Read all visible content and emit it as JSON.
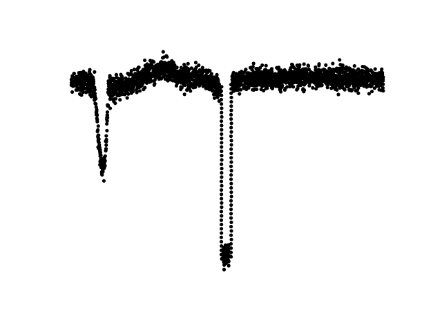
{
  "chart_data": {
    "type": "scatter",
    "title": "",
    "xlabel": "",
    "ylabel": "",
    "axes_visible": false,
    "grid": false,
    "legend": "none",
    "marker_color": "#000000",
    "xlim": [
      0,
      100
    ],
    "ylim": [
      0,
      100
    ],
    "x_range_data": [
      0,
      100
    ],
    "baseline_points": [
      {
        "x": 0,
        "y": 80.0
      },
      {
        "x": 5,
        "y": 80.0
      },
      {
        "x": 7,
        "y": 79.0
      },
      {
        "x": 8,
        "y": 70.0
      },
      {
        "x": 9,
        "y": 55.0
      },
      {
        "x": 10,
        "y": 47.0
      },
      {
        "x": 11,
        "y": 52.0
      },
      {
        "x": 11.5,
        "y": 65.0
      },
      {
        "x": 12,
        "y": 78.0
      },
      {
        "x": 15,
        "y": 77.0
      },
      {
        "x": 20,
        "y": 80.0
      },
      {
        "x": 25,
        "y": 83.0
      },
      {
        "x": 30,
        "y": 85.0
      },
      {
        "x": 35,
        "y": 81.0
      },
      {
        "x": 40,
        "y": 82.0
      },
      {
        "x": 46,
        "y": 79.0
      },
      {
        "x": 47.5,
        "y": 77.5
      },
      {
        "x": 52,
        "y": 80.0
      },
      {
        "x": 60,
        "y": 81.0
      },
      {
        "x": 70,
        "y": 81.5
      },
      {
        "x": 80,
        "y": 81.5
      },
      {
        "x": 90,
        "y": 81.0
      },
      {
        "x": 100,
        "y": 80.5
      }
    ],
    "scatter_band": 4.5,
    "transit": {
      "ingress_x": 48.0,
      "egress_x": 51.5,
      "floor_y": 14.0,
      "floor_range": [
        48.7,
        50.5
      ]
    },
    "outliers": [
      {
        "x": 7.5,
        "y": 83.5
      },
      {
        "x": 10.5,
        "y": 43.0
      },
      {
        "x": 29.5,
        "y": 91.0
      },
      {
        "x": 30.5,
        "y": 89.5
      },
      {
        "x": 49.0,
        "y": 10.0
      },
      {
        "x": 86.0,
        "y": 88.0
      },
      {
        "x": 87.0,
        "y": 86.0
      },
      {
        "x": 12.5,
        "y": 70.0
      }
    ]
  }
}
